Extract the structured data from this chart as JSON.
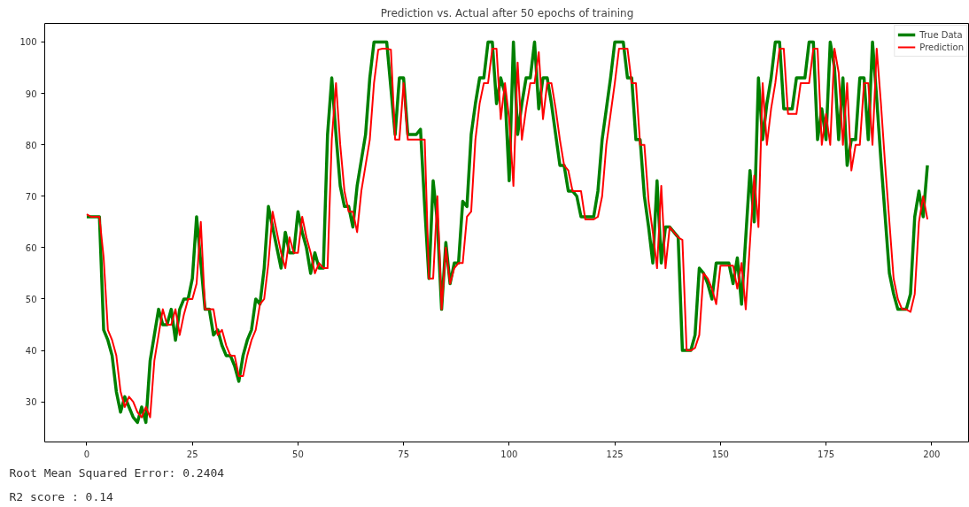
{
  "chart_data": {
    "type": "line",
    "title": "Prediction vs. Actual after 50 epochs of training",
    "x": [
      0,
      1,
      2,
      3,
      4,
      5,
      6,
      7,
      8,
      9,
      10,
      11,
      12,
      13,
      14,
      15,
      16,
      17,
      18,
      19,
      20,
      21,
      22,
      23,
      24,
      25,
      26,
      27,
      28,
      29,
      30,
      31,
      32,
      33,
      34,
      35,
      36,
      37,
      38,
      39,
      40,
      41,
      42,
      43,
      44,
      45,
      46,
      47,
      48,
      49,
      50,
      51,
      52,
      53,
      54,
      55,
      56,
      57,
      58,
      59,
      60,
      61,
      62,
      63,
      64,
      65,
      66,
      67,
      68,
      69,
      70,
      71,
      72,
      73,
      74,
      75,
      76,
      77,
      78,
      79,
      80,
      81,
      82,
      83,
      84,
      85,
      86,
      87,
      88,
      89,
      90,
      91,
      92,
      93,
      94,
      95,
      96,
      97,
      98,
      99,
      100,
      101,
      102,
      103,
      104,
      105,
      106,
      107,
      108,
      109,
      110,
      111,
      112,
      113,
      114,
      115,
      116,
      117,
      118,
      119,
      120,
      121,
      122,
      123,
      124,
      125,
      126,
      127,
      128,
      129,
      130,
      131,
      132,
      133,
      134,
      135,
      136,
      137,
      138,
      139,
      140,
      141,
      142,
      143,
      144,
      145,
      146,
      147,
      148,
      149,
      150,
      151,
      152,
      153,
      154,
      155,
      156,
      157,
      158,
      159,
      160,
      161,
      162,
      163,
      164,
      165,
      166,
      167,
      168,
      169,
      170,
      171,
      172,
      173,
      174,
      175,
      176,
      177,
      178,
      179,
      180,
      181,
      182,
      183,
      184,
      185,
      186,
      187,
      188,
      189,
      190,
      191,
      192,
      193,
      194,
      195,
      196,
      197,
      198,
      199
    ],
    "series": [
      {
        "name": "True Data",
        "color": "#008000",
        "values": [
          66,
          66,
          66,
          66,
          44,
          42,
          39,
          32,
          28,
          31,
          29,
          27,
          26,
          29,
          26,
          38,
          43,
          48,
          45,
          45,
          48,
          42,
          48,
          50,
          50,
          54,
          66,
          57,
          48,
          48,
          43,
          44,
          41,
          39,
          39,
          37,
          34,
          39,
          42,
          44,
          50,
          49,
          56,
          68,
          64,
          60,
          56,
          63,
          59,
          59,
          67,
          63,
          60,
          55,
          59,
          56,
          56,
          82,
          93,
          82,
          72,
          68,
          68,
          64,
          72,
          77,
          82,
          93,
          100,
          100,
          100,
          100,
          91,
          82,
          93,
          93,
          82,
          82,
          82,
          83,
          68,
          54,
          73,
          65,
          48,
          61,
          53,
          57,
          57,
          69,
          68,
          82,
          88,
          93,
          93,
          100,
          100,
          88,
          93,
          90,
          73,
          100,
          82,
          88,
          93,
          93,
          100,
          87,
          93,
          93,
          88,
          82,
          76,
          76,
          71,
          71,
          70,
          66,
          66,
          66,
          66,
          71,
          81,
          87,
          93,
          100,
          100,
          100,
          93,
          93,
          81,
          81,
          70,
          64,
          57,
          73,
          57,
          64,
          64,
          63,
          62,
          40,
          40,
          40,
          43,
          56,
          55,
          53,
          50,
          57,
          57,
          57,
          57,
          53,
          58,
          49,
          62,
          75,
          65,
          93,
          81,
          88,
          93,
          100,
          100,
          87,
          87,
          87,
          93,
          93,
          93,
          100,
          100,
          81,
          87,
          81,
          100,
          95,
          81,
          93,
          76,
          81,
          81,
          93,
          93,
          81,
          100,
          89,
          77,
          66,
          55,
          51,
          48,
          48,
          48,
          51,
          66,
          71,
          66,
          76
        ]
      },
      {
        "name": "Prediction",
        "color": "#ff0000",
        "values": [
          66.5,
          66,
          66,
          66,
          58,
          44,
          42,
          39,
          32,
          29,
          31,
          30,
          28,
          27,
          29,
          27,
          38,
          43,
          48,
          45,
          45,
          48,
          43,
          47,
          50,
          50,
          53,
          65,
          48,
          48,
          48,
          43,
          44,
          41,
          39,
          39,
          35,
          35,
          39,
          42,
          44,
          49,
          50,
          57,
          67,
          63,
          59,
          56,
          62,
          59,
          59,
          66,
          62,
          59,
          55,
          57,
          56,
          56,
          81,
          92,
          80,
          71,
          67,
          67,
          63,
          71,
          76,
          81,
          92,
          98.5,
          98.7,
          98.7,
          98.5,
          81,
          81,
          92,
          81,
          81,
          81,
          81,
          81,
          54,
          54,
          70,
          48,
          60,
          53,
          56,
          57,
          57,
          66,
          67,
          81,
          88,
          92,
          92,
          98.7,
          98.7,
          85,
          92,
          85,
          72,
          96,
          81,
          87,
          92,
          92,
          98,
          85,
          92,
          92,
          87,
          81,
          76,
          75,
          71,
          71,
          71,
          65.5,
          65.5,
          65.5,
          66,
          70,
          80,
          86,
          92,
          98.7,
          98.7,
          98.7,
          92,
          92,
          80,
          80,
          69,
          63,
          56,
          72,
          56,
          64,
          63,
          62,
          61.5,
          40,
          40,
          40.5,
          43,
          55,
          54,
          52,
          49,
          56.5,
          56.5,
          56.5,
          56.5,
          52,
          57,
          48,
          61,
          74,
          64,
          92,
          80,
          87,
          92,
          98.7,
          98.7,
          86,
          86,
          86,
          92,
          92,
          92,
          98.7,
          98.7,
          80,
          86,
          80,
          98.7,
          94,
          80,
          92,
          75,
          80,
          80,
          92,
          92,
          80,
          98.7,
          88,
          76,
          65,
          54,
          50,
          48,
          48,
          47.5,
          51,
          65,
          70,
          65.5
        ]
      }
    ],
    "xlim": [
      -9.95,
      208.95
    ],
    "ylim": [
      22.2,
      103.6
    ],
    "xticks": [
      0,
      25,
      50,
      75,
      100,
      125,
      150,
      175,
      200
    ],
    "yticks": [
      30,
      40,
      50,
      60,
      70,
      80,
      90,
      100
    ],
    "grid": false,
    "legend": "top right",
    "marker": "none",
    "line_style": "solid",
    "annotations": [
      "Root Mean Squared Error: 0.2404",
      "R2 score : 0.14"
    ]
  }
}
